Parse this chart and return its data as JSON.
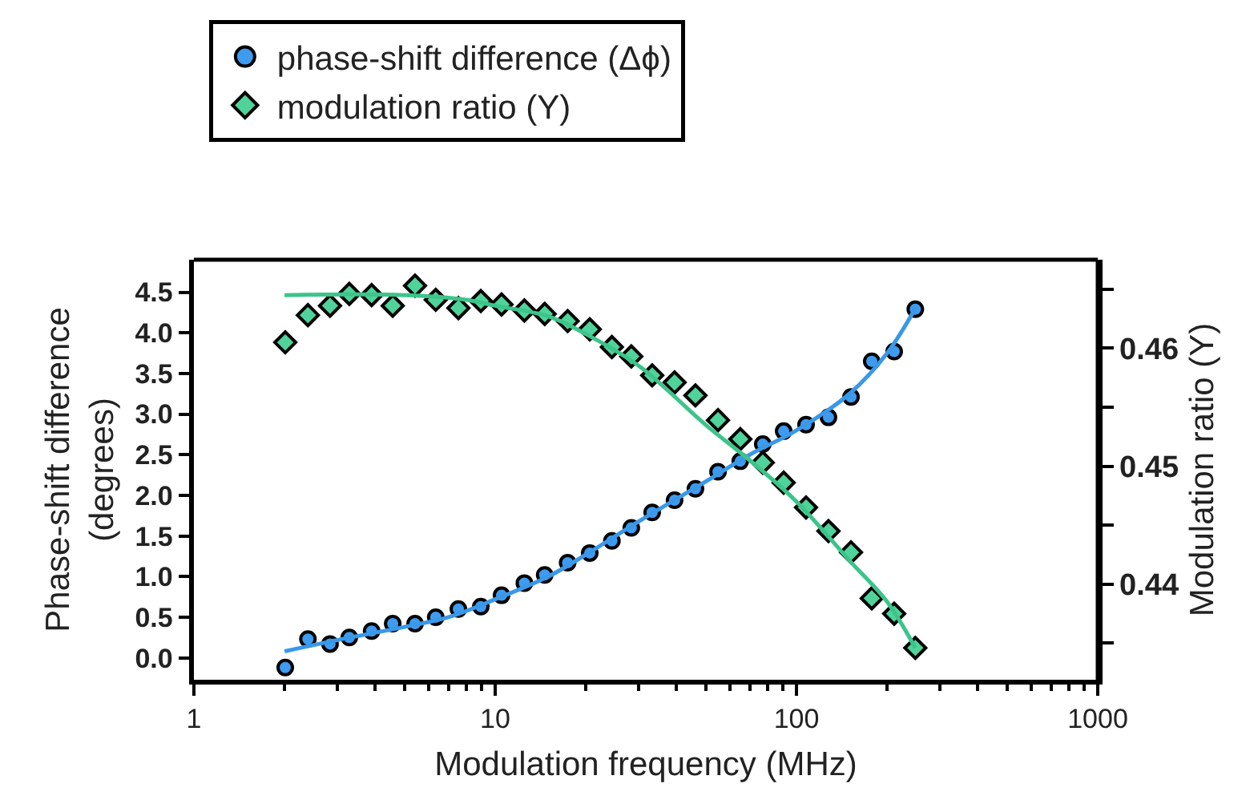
{
  "chart_data": {
    "type": "scatter",
    "xlabel": "Modulation frequency (MHz)",
    "ylabel": "Phase-shift difference (degrees)",
    "y2label": "Modulation ratio (Y)",
    "log": "x",
    "legend": "top",
    "xlim": [
      1,
      1000
    ],
    "xticks": [
      1,
      10,
      100,
      1000
    ],
    "ylim": [
      -0.27,
      4.9
    ],
    "yticks": [
      {
        "value": 0,
        "label": "0.0"
      },
      {
        "value": 0.5,
        "label": "0.5"
      },
      {
        "value": 1,
        "label": "1.0"
      },
      {
        "value": 1.5,
        "label": "1.5"
      },
      {
        "value": 2,
        "label": "2.0"
      },
      {
        "value": 2.5,
        "label": "2.5"
      },
      {
        "value": 3,
        "label": "3.0"
      },
      {
        "value": 3.5,
        "label": "3.5"
      },
      {
        "value": 4,
        "label": "4.0"
      },
      {
        "value": 4.5,
        "label": "4.5"
      }
    ],
    "y2lim": [
      0.4319,
      0.4675
    ],
    "y2ticks": [
      {
        "value": 0.435,
        "label": null
      },
      0.44,
      {
        "value": 0.445,
        "label": null
      },
      0.45,
      {
        "value": 0.455,
        "label": null
      },
      0.46,
      {
        "value": 0.465,
        "label": null
      }
    ],
    "series": [
      {
        "name": "phase-shift difference (Δϕ)",
        "marker": "circle",
        "color": "#3d9bf0",
        "x": [
          2.01,
          2.39,
          2.83,
          3.28,
          3.89,
          4.57,
          5.42,
          6.35,
          7.55,
          8.96,
          10.5,
          12.5,
          14.6,
          17.4,
          20.6,
          24.4,
          28.3,
          33.2,
          39.4,
          46.2,
          54.9,
          65.1,
          77.3,
          90.7,
          107.6,
          127.7,
          151.7,
          177.8,
          211,
          248
        ],
        "values": [
          -0.12,
          0.23,
          0.17,
          0.25,
          0.33,
          0.42,
          0.42,
          0.5,
          0.6,
          0.63,
          0.77,
          0.92,
          1.02,
          1.17,
          1.29,
          1.44,
          1.6,
          1.79,
          1.94,
          2.08,
          2.29,
          2.42,
          2.63,
          2.79,
          2.87,
          2.96,
          3.21,
          3.65,
          3.77,
          4.29
        ]
      },
      {
        "name": "modulation ratio (Y)",
        "marker": "diamond",
        "color": "#4fd39a",
        "axis": "y2",
        "x": [
          2.01,
          2.39,
          2.83,
          3.28,
          3.89,
          4.57,
          5.42,
          6.35,
          7.55,
          8.96,
          10.5,
          12.5,
          14.6,
          17.4,
          20.6,
          24.4,
          28.3,
          33.2,
          39.4,
          46.2,
          54.9,
          65.1,
          77.3,
          90.7,
          107.6,
          127.7,
          151.7,
          177.8,
          211,
          248
        ],
        "values": [
          0.4605,
          0.4628,
          0.4636,
          0.4646,
          0.4645,
          0.4636,
          0.4653,
          0.4641,
          0.4634,
          0.464,
          0.4637,
          0.4632,
          0.4629,
          0.4623,
          0.4616,
          0.4601,
          0.4593,
          0.4577,
          0.4571,
          0.456,
          0.4539,
          0.4523,
          0.4503,
          0.4486,
          0.4465,
          0.4445,
          0.4427,
          0.4388,
          0.4375,
          0.4346
        ]
      },
      {
        "type": "line",
        "marker": "none",
        "color": "#3a98e8",
        "x": [
          2,
          3,
          5,
          7,
          10,
          15,
          20,
          30,
          50,
          70,
          100,
          150,
          200,
          248
        ],
        "values": [
          0.08,
          0.22,
          0.38,
          0.5,
          0.72,
          1.0,
          1.27,
          1.68,
          2.17,
          2.5,
          2.8,
          3.25,
          3.75,
          4.3
        ]
      },
      {
        "type": "line",
        "marker": "none",
        "color": "#3cc48a",
        "axis": "y2",
        "x": [
          2,
          5,
          8,
          10,
          15,
          20,
          30,
          50,
          70,
          100,
          150,
          200,
          248
        ],
        "values": [
          0.4645,
          0.4645,
          0.4641,
          0.4636,
          0.4627,
          0.4612,
          0.4585,
          0.4535,
          0.4505,
          0.447,
          0.442,
          0.4385,
          0.4346
        ]
      }
    ]
  }
}
